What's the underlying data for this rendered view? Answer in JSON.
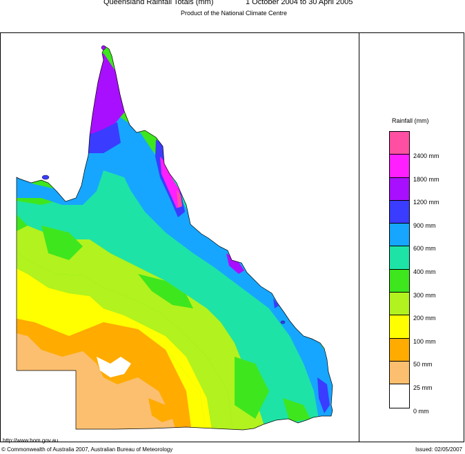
{
  "title_left": "Queensland Rainfall Totals (mm)",
  "title_right": "1 October 2004 to 30 April 2005",
  "subtitle": "Product of the National Climate Centre",
  "legend": {
    "title": "Rainfall (mm)",
    "bands": [
      {
        "color": "#ff4fa3"
      },
      {
        "color": "#ff1fff"
      },
      {
        "color": "#a90fff"
      },
      {
        "color": "#3a3cff"
      },
      {
        "color": "#16a6ff"
      },
      {
        "color": "#1ee3a6"
      },
      {
        "color": "#3ee61e"
      },
      {
        "color": "#b2f21e"
      },
      {
        "color": "#ffff00"
      },
      {
        "color": "#ffab00"
      },
      {
        "color": "#fbbf6f"
      },
      {
        "color": "#ffffff"
      }
    ],
    "labels": [
      "2400 mm",
      "1800 mm",
      "1200 mm",
      "900 mm",
      "600 mm",
      "400 mm",
      "300 mm",
      "200 mm",
      "100 mm",
      "50 mm",
      "25 mm",
      "0 mm"
    ]
  },
  "footer": {
    "url": "http://www.bom.gov.au",
    "copyright": "© Commonwealth of Australia 2007, Australian Bureau of Meteorology",
    "issued": "Issued: 02/05/2007"
  }
}
